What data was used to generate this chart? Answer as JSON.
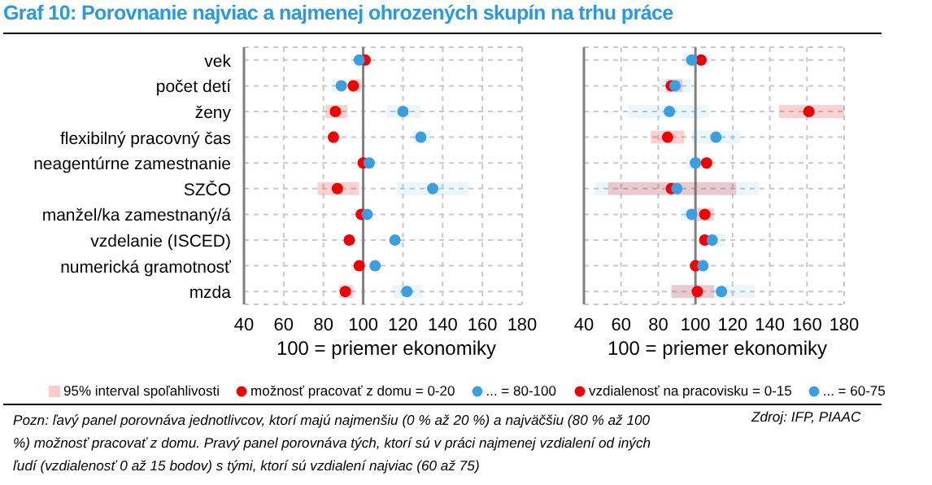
{
  "chart_data": [
    {
      "type": "scatter",
      "orientation": "horizontal",
      "title": "Graf 10: Porovnanie najviac a najmenej ohrozených skupín na trhu práce",
      "xlabel": "100 = priemer ekonomiky",
      "categories": [
        "vek",
        "počet detí",
        "ženy",
        "flexibilný pracovný čas",
        "neagentúrne zamestnanie",
        "SZČO",
        "manžel/ka zamestnaný/á",
        "vzdelanie (ISCED)",
        "numerická gramotnosť",
        "mzda"
      ],
      "series": [
        {
          "name": "možnosť pracovať z domu = 0-20",
          "color": "#f00000",
          "values": [
            101,
            95,
            86,
            85,
            100,
            87,
            99,
            93,
            98,
            91
          ],
          "errors": [
            null,
            [
              93,
              99
            ],
            [
              81,
              92
            ],
            [
              84,
              87
            ],
            null,
            [
              77,
              98
            ],
            null,
            null,
            null,
            [
              88,
              95
            ]
          ]
        },
        {
          "name": "... = 80-100",
          "color": "#3b9ee0",
          "values": [
            98,
            89,
            120,
            129,
            103,
            135,
            102,
            116,
            106,
            122
          ],
          "errors": [
            null,
            [
              84,
              91
            ],
            [
              112,
              129
            ],
            [
              125,
              134
            ],
            null,
            [
              117,
              153
            ],
            null,
            null,
            null,
            [
              115,
              130
            ]
          ]
        }
      ],
      "xlim": [
        40,
        180
      ],
      "xticks": [
        40,
        60,
        80,
        100,
        120,
        140,
        160,
        180
      ],
      "grid": true,
      "legend": "bottom",
      "marker": "circle",
      "ref_lines": [
        {
          "axis": "x",
          "value": 100,
          "color": "#808080"
        }
      ],
      "annotations": [
        "95% interval spoľahlivosti",
        "Pozn: ľavý panel porovnáva jednotlivcov, ktorí majú najmenšiu (0 % až 20 %) a najväčšiu (80 % až 100 %) možnosť pracovať z domu. Pravý panel porovnáva tých, ktorí sú v práci najmenej vzdialení od iných ľudí (vzdialenosť 0 až 15 bodov) s tými, ktorí sú vzdialení najviac (60 až 75)",
        "Zdroj: IFP, PIAAC"
      ]
    },
    {
      "type": "scatter",
      "orientation": "horizontal",
      "xlabel": "100 = priemer ekonomiky",
      "categories": [
        null,
        null,
        null,
        null,
        null,
        null,
        null,
        null,
        null,
        null
      ],
      "tick_labels": "x",
      "series": [
        {
          "name": "vzdialenosť na pracovisku = 0-15",
          "color": "#f00000",
          "values": [
            103,
            87,
            161,
            85,
            106,
            87,
            105,
            105,
            100,
            101
          ],
          "errors": [
            null,
            [
              84,
              93
            ],
            [
              145,
              180
            ],
            [
              76,
              94
            ],
            null,
            [
              53,
              122
            ],
            [
              101,
              110
            ],
            null,
            null,
            [
              87,
              110
            ]
          ]
        },
        {
          "name": "... = 60-75",
          "color": "#3b9ee0",
          "values": [
            98,
            89,
            86,
            111,
            100,
            90,
            98,
            109,
            104,
            114
          ],
          "errors": [
            [
              93,
              108
            ],
            [
              80,
              98
            ],
            [
              64,
              107
            ],
            [
              98,
              124
            ],
            [
              95,
              105
            ],
            [
              46,
              134
            ],
            [
              92,
              102
            ],
            [
              102,
              116
            ],
            [
              100,
              107
            ],
            [
              87,
              132
            ]
          ]
        }
      ],
      "xlim": [
        40,
        180
      ],
      "xticks": [
        40,
        60,
        80,
        100,
        120,
        140,
        160,
        180
      ],
      "grid": true,
      "legend": "bottom",
      "marker": "circle",
      "ref_lines": [
        {
          "axis": "x",
          "value": 100,
          "color": "#808080"
        }
      ]
    }
  ]
}
